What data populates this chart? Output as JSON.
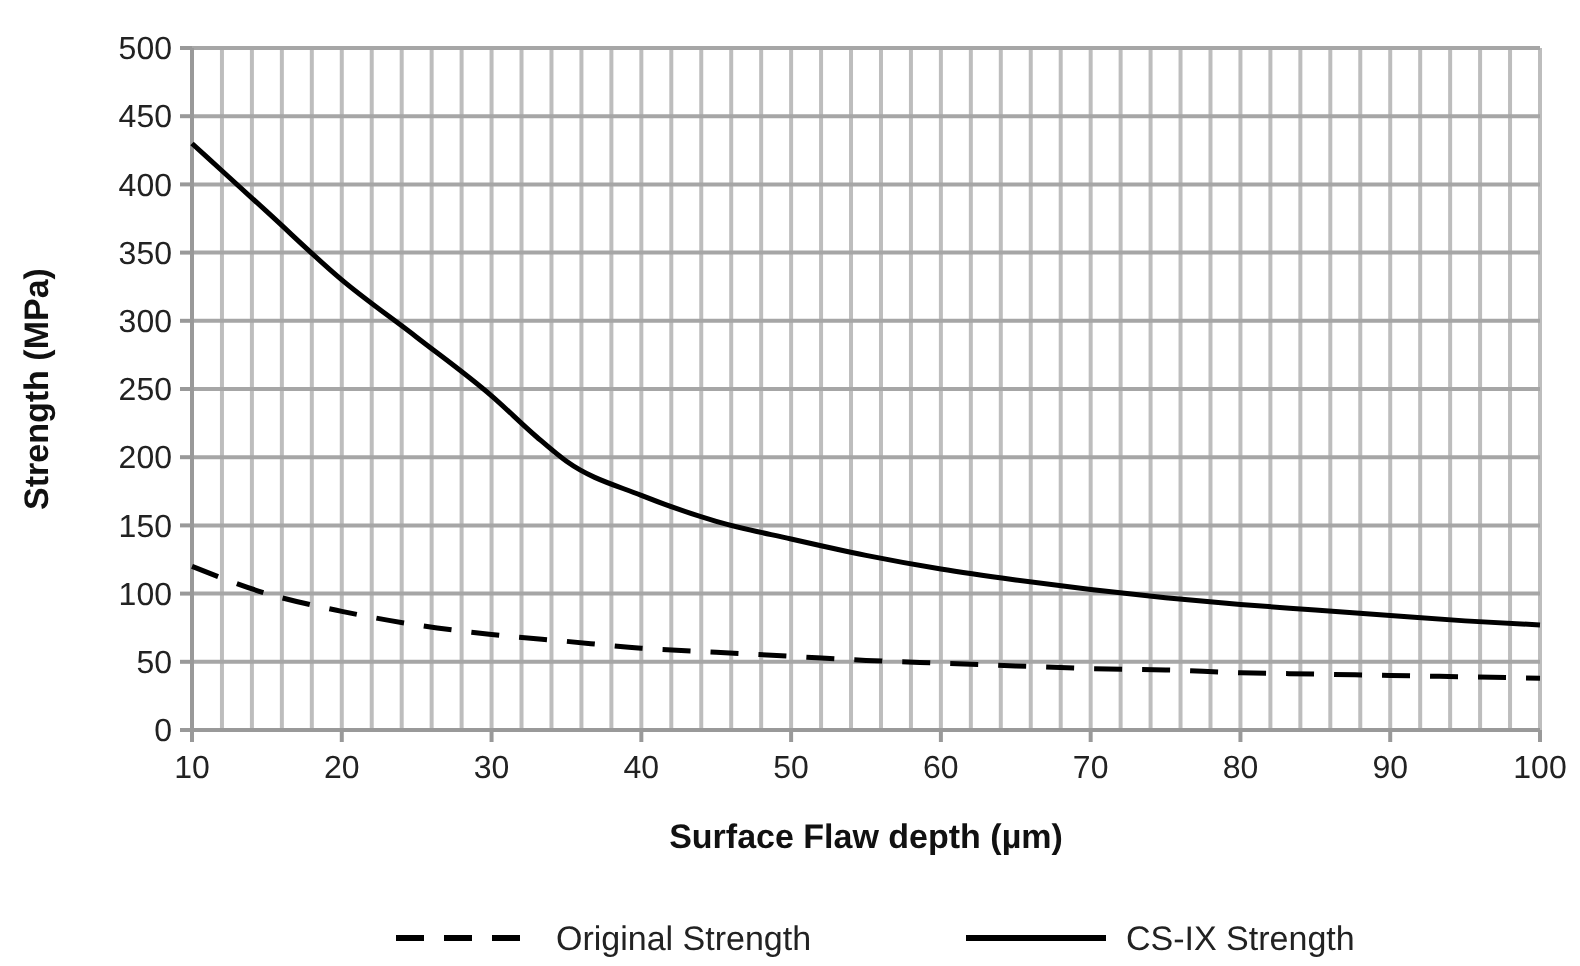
{
  "chart_data": {
    "type": "line",
    "xlabel": "Surface Flaw depth (µm)",
    "ylabel": "Strength (MPa)",
    "xlim": [
      10,
      100
    ],
    "ylim": [
      0,
      500
    ],
    "xticks": [
      10,
      {
        "value": 12,
        "label": null
      },
      {
        "value": 14,
        "label": null
      },
      {
        "value": 16,
        "label": null
      },
      {
        "value": 18,
        "label": null
      },
      20,
      {
        "value": 22,
        "label": null
      },
      {
        "value": 24,
        "label": null
      },
      {
        "value": 26,
        "label": null
      },
      {
        "value": 28,
        "label": null
      },
      30,
      {
        "value": 32,
        "label": null
      },
      {
        "value": 34,
        "label": null
      },
      {
        "value": 36,
        "label": null
      },
      {
        "value": 38,
        "label": null
      },
      40,
      {
        "value": 42,
        "label": null
      },
      {
        "value": 44,
        "label": null
      },
      {
        "value": 46,
        "label": null
      },
      {
        "value": 48,
        "label": null
      },
      50,
      {
        "value": 52,
        "label": null
      },
      {
        "value": 54,
        "label": null
      },
      {
        "value": 56,
        "label": null
      },
      {
        "value": 58,
        "label": null
      },
      60,
      {
        "value": 62,
        "label": null
      },
      {
        "value": 64,
        "label": null
      },
      {
        "value": 66,
        "label": null
      },
      {
        "value": 68,
        "label": null
      },
      70,
      {
        "value": 72,
        "label": null
      },
      {
        "value": 74,
        "label": null
      },
      {
        "value": 76,
        "label": null
      },
      {
        "value": 78,
        "label": null
      },
      80,
      {
        "value": 82,
        "label": null
      },
      {
        "value": 84,
        "label": null
      },
      {
        "value": 86,
        "label": null
      },
      {
        "value": 88,
        "label": null
      },
      90,
      {
        "value": 92,
        "label": null
      },
      {
        "value": 94,
        "label": null
      },
      {
        "value": 96,
        "label": null
      },
      {
        "value": 98,
        "label": null
      },
      100
    ],
    "yticks": [
      0,
      50,
      100,
      150,
      200,
      250,
      300,
      350,
      400,
      450,
      500
    ],
    "grid": true,
    "legend": "bottom",
    "marker": "none",
    "series": [
      {
        "name": "Original Strength",
        "color": "#000000",
        "line_style": "dashed",
        "x": [
          10,
          15,
          20,
          25,
          30,
          35,
          40,
          45,
          50,
          55,
          60,
          65,
          70,
          75,
          80,
          85,
          90,
          95,
          100
        ],
        "values": [
          120,
          100,
          87,
          77,
          70,
          65,
          60,
          57,
          54,
          51,
          49,
          47,
          45,
          44,
          42,
          41,
          40,
          39,
          38
        ]
      },
      {
        "name": "CS-IX Strength",
        "color": "#000000",
        "line_style": "solid",
        "x": [
          10,
          12,
          15,
          20,
          25,
          30,
          33,
          35,
          40,
          45,
          50,
          55,
          60,
          65,
          70,
          75,
          80,
          85,
          90,
          95,
          100
        ],
        "values": [
          430,
          410,
          380,
          330,
          288,
          245,
          215,
          197,
          172,
          153,
          140,
          128,
          118,
          110,
          103,
          97,
          92,
          88,
          84,
          80,
          77
        ]
      }
    ]
  }
}
